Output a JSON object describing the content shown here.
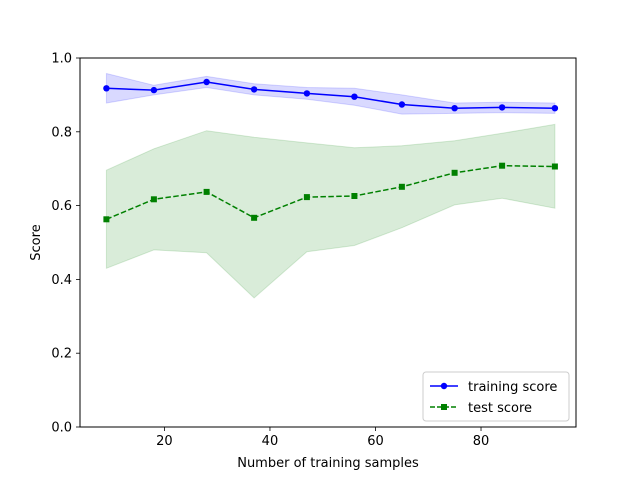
{
  "chart_data": {
    "type": "line",
    "title": "",
    "xlabel": "Number of training samples",
    "ylabel": "Score",
    "xlim": [
      4,
      98
    ],
    "ylim": [
      0.0,
      1.0
    ],
    "x_ticks": [
      20,
      40,
      60,
      80
    ],
    "y_ticks": [
      0.0,
      0.2,
      0.4,
      0.6,
      0.8,
      1.0
    ],
    "x_tick_labels": [
      "20",
      "40",
      "60",
      "80"
    ],
    "y_tick_labels": [
      "0.0",
      "0.2",
      "0.4",
      "0.6",
      "0.8",
      "1.0"
    ],
    "grid": false,
    "legend_position": "lower-right",
    "x": [
      9,
      18,
      28,
      37,
      47,
      56,
      65,
      75,
      84,
      94
    ],
    "series": [
      {
        "name": "training score",
        "color": "#0000ff",
        "marker": "circle",
        "linestyle": "solid",
        "values": [
          0.918,
          0.913,
          0.935,
          0.915,
          0.904,
          0.895,
          0.874,
          0.864,
          0.866,
          0.864
        ],
        "band_lower": [
          0.878,
          0.9,
          0.92,
          0.9,
          0.888,
          0.872,
          0.848,
          0.85,
          0.852,
          0.85
        ],
        "band_upper": [
          0.958,
          0.926,
          0.95,
          0.93,
          0.92,
          0.918,
          0.9,
          0.878,
          0.88,
          0.878
        ],
        "band_color": "#0000ff"
      },
      {
        "name": "test score",
        "color": "#008000",
        "marker": "square",
        "linestyle": "dashed",
        "values": [
          0.563,
          0.617,
          0.637,
          0.567,
          0.623,
          0.626,
          0.651,
          0.689,
          0.708,
          0.706
        ],
        "band_lower": [
          0.43,
          0.48,
          0.472,
          0.35,
          0.475,
          0.492,
          0.54,
          0.602,
          0.62,
          0.593
        ],
        "band_upper": [
          0.696,
          0.754,
          0.803,
          0.785,
          0.77,
          0.757,
          0.762,
          0.776,
          0.796,
          0.82
        ],
        "band_color": "#008000"
      }
    ]
  }
}
